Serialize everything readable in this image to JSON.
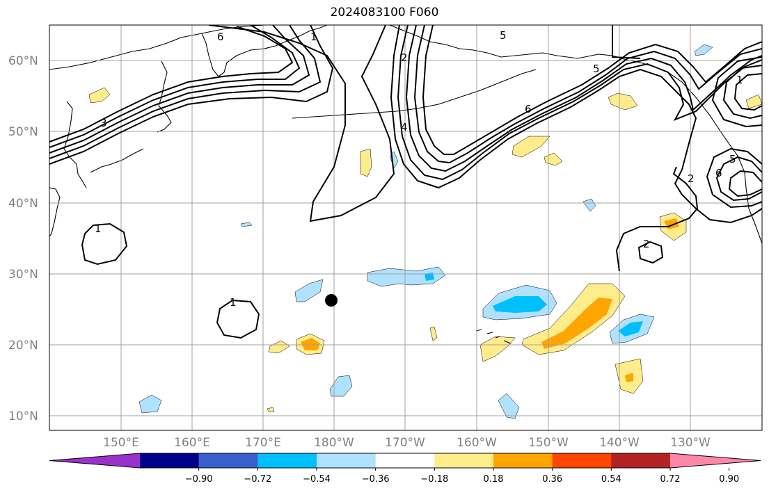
{
  "title": "2024083100 F060",
  "latitude_labels": [
    "10°N",
    "20°N",
    "30°N",
    "40°N",
    "50°N",
    "60°N"
  ],
  "longitude_labels": [
    "150°E",
    "160°E",
    "170°E",
    "180°W",
    "170°W",
    "160°W",
    "150°W",
    "140°W",
    "130°W"
  ],
  "colorbar": {
    "ticks": [
      "−0.90",
      "−0.72",
      "−0.54",
      "−0.36",
      "−0.18",
      "0.18",
      "0.36",
      "0.54",
      "0.72",
      "0.90"
    ],
    "colors": [
      "#9932cc",
      "#00008b",
      "#3a5fcd",
      "#00bfff",
      "#b0e2ff",
      "#ffffff",
      "#ffec8b",
      "#ffa500",
      "#ff4500",
      "#b22222",
      "#ff88aa"
    ]
  },
  "contour_labels": [
    "6",
    "1",
    "5",
    "2",
    "4",
    "3",
    "6",
    "5",
    "1",
    "2",
    "6",
    "5",
    "1",
    "1",
    "2"
  ],
  "colors": {
    "grid": "#a0a0a0",
    "coastline": "#000000",
    "contour": "#000000",
    "storm_marker": "#000000"
  }
}
